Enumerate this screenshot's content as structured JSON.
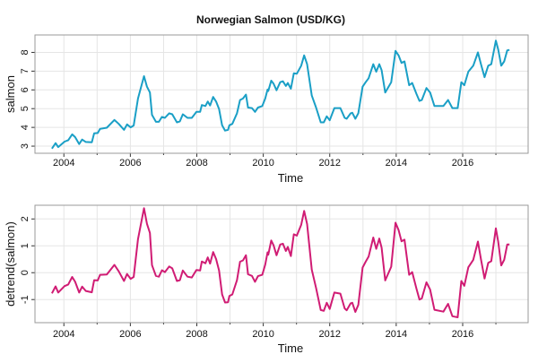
{
  "chart_data": [
    {
      "type": "line",
      "title": "Norwegian Salmon (USD/KG)",
      "xlabel": "Time",
      "ylabel": "salmon",
      "xlim": [
        2003.13,
        2017.97
      ],
      "ylim": [
        2.62,
        8.93
      ],
      "xticks": [
        2004,
        2006,
        2008,
        2010,
        2012,
        2014,
        2016
      ],
      "xtick_labels": [
        "2004",
        "2006",
        "2008",
        "2010",
        "2012",
        "2014",
        "2016"
      ],
      "yticks": [
        3,
        4,
        5,
        6,
        7,
        8
      ],
      "ytick_labels": [
        "3",
        "4",
        "5",
        "6",
        "7",
        "8"
      ],
      "grid": true,
      "color": "#1a9fc6",
      "x": [
        2003.64,
        2003.75,
        2003.83,
        2004.02,
        2004.13,
        2004.25,
        2004.34,
        2004.46,
        2004.55,
        2004.66,
        2004.84,
        2004.91,
        2005.02,
        2005.09,
        2005.29,
        2005.52,
        2005.65,
        2005.81,
        2005.9,
        2006.01,
        2006.1,
        2006.23,
        2006.41,
        2006.5,
        2006.59,
        2006.65,
        2006.77,
        2006.86,
        2006.95,
        2007.04,
        2007.17,
        2007.26,
        2007.4,
        2007.49,
        2007.58,
        2007.72,
        2007.85,
        2007.99,
        2008.1,
        2008.15,
        2008.26,
        2008.33,
        2008.4,
        2008.49,
        2008.58,
        2008.67,
        2008.76,
        2008.85,
        2008.94,
        2008.98,
        2009.07,
        2009.21,
        2009.3,
        2009.39,
        2009.48,
        2009.54,
        2009.66,
        2009.75,
        2009.84,
        2009.97,
        2010.06,
        2010.13,
        2010.15,
        2010.24,
        2010.31,
        2010.4,
        2010.51,
        2010.59,
        2010.68,
        2010.74,
        2010.83,
        2010.92,
        2011.01,
        2011.14,
        2011.23,
        2011.32,
        2011.46,
        2011.59,
        2011.73,
        2011.82,
        2011.91,
        2012.0,
        2012.14,
        2012.32,
        2012.45,
        2012.51,
        2012.63,
        2012.68,
        2012.77,
        2012.86,
        2012.99,
        2013.08,
        2013.17,
        2013.31,
        2013.4,
        2013.49,
        2013.56,
        2013.67,
        2013.85,
        2013.98,
        2014.07,
        2014.16,
        2014.25,
        2014.39,
        2014.48,
        2014.61,
        2014.7,
        2014.77,
        2014.91,
        2015.02,
        2015.15,
        2015.42,
        2015.56,
        2015.69,
        2015.85,
        2015.96,
        2016.05,
        2016.17,
        2016.32,
        2016.46,
        2016.55,
        2016.66,
        2016.77,
        2016.86,
        2017.0,
        2017.07,
        2017.16,
        2017.25,
        2017.34,
        2017.41
      ],
      "y": [
        2.87,
        3.16,
        2.95,
        3.24,
        3.32,
        3.63,
        3.48,
        3.11,
        3.35,
        3.22,
        3.21,
        3.68,
        3.7,
        3.92,
        3.98,
        4.4,
        4.19,
        3.87,
        4.16,
        4.0,
        4.1,
        5.54,
        6.73,
        6.17,
        5.86,
        4.67,
        4.3,
        4.3,
        4.56,
        4.51,
        4.75,
        4.7,
        4.27,
        4.32,
        4.7,
        4.51,
        4.51,
        4.83,
        4.83,
        5.19,
        5.14,
        5.38,
        5.17,
        5.62,
        5.38,
        4.98,
        4.11,
        3.83,
        3.87,
        4.11,
        4.19,
        4.75,
        5.46,
        5.54,
        5.75,
        5.06,
        5.03,
        4.83,
        5.06,
        5.14,
        5.54,
        6.02,
        5.94,
        6.49,
        6.33,
        5.98,
        6.41,
        6.46,
        6.21,
        6.37,
        6.06,
        6.89,
        6.86,
        7.29,
        7.84,
        7.37,
        5.7,
        5.06,
        4.27,
        4.27,
        4.59,
        4.38,
        5.03,
        5.03,
        4.51,
        4.46,
        4.75,
        4.78,
        4.46,
        4.75,
        6.17,
        6.41,
        6.62,
        7.37,
        6.97,
        7.37,
        7.05,
        5.86,
        6.41,
        8.08,
        7.84,
        7.44,
        7.52,
        6.25,
        6.37,
        5.78,
        5.41,
        5.46,
        6.1,
        5.86,
        5.14,
        5.14,
        5.46,
        5.03,
        5.03,
        6.41,
        6.25,
        6.97,
        7.29,
        8.0,
        7.37,
        6.68,
        7.29,
        7.37,
        8.63,
        8.16,
        7.29,
        7.52,
        8.11,
        8.13
      ]
    },
    {
      "type": "line",
      "title": "",
      "xlabel": "Time",
      "ylabel": "detrend(salmon)",
      "xlim": [
        2003.13,
        2017.97
      ],
      "ylim": [
        -1.86,
        2.51
      ],
      "xticks": [
        2004,
        2006,
        2008,
        2010,
        2012,
        2014,
        2016
      ],
      "xtick_labels": [
        "2004",
        "2006",
        "2008",
        "2010",
        "2012",
        "2014",
        "2016"
      ],
      "yticks": [
        -1,
        0,
        1,
        2
      ],
      "ytick_labels": [
        "-1",
        "0",
        "1",
        "2"
      ],
      "grid": true,
      "color": "#d01c74",
      "x": [
        2003.64,
        2003.75,
        2003.83,
        2004.02,
        2004.13,
        2004.25,
        2004.34,
        2004.46,
        2004.55,
        2004.66,
        2004.84,
        2004.91,
        2005.02,
        2005.09,
        2005.29,
        2005.52,
        2005.65,
        2005.81,
        2005.9,
        2006.01,
        2006.1,
        2006.23,
        2006.41,
        2006.5,
        2006.59,
        2006.65,
        2006.77,
        2006.86,
        2006.95,
        2007.04,
        2007.17,
        2007.26,
        2007.4,
        2007.49,
        2007.58,
        2007.72,
        2007.85,
        2007.99,
        2008.1,
        2008.15,
        2008.26,
        2008.33,
        2008.4,
        2008.49,
        2008.58,
        2008.67,
        2008.76,
        2008.85,
        2008.94,
        2008.98,
        2009.07,
        2009.21,
        2009.3,
        2009.39,
        2009.48,
        2009.54,
        2009.66,
        2009.75,
        2009.84,
        2009.97,
        2010.06,
        2010.13,
        2010.15,
        2010.24,
        2010.31,
        2010.4,
        2010.51,
        2010.59,
        2010.68,
        2010.74,
        2010.83,
        2010.92,
        2011.01,
        2011.14,
        2011.23,
        2011.32,
        2011.46,
        2011.59,
        2011.73,
        2011.82,
        2011.91,
        2012.0,
        2012.14,
        2012.32,
        2012.45,
        2012.51,
        2012.63,
        2012.68,
        2012.77,
        2012.86,
        2012.99,
        2013.08,
        2013.17,
        2013.31,
        2013.4,
        2013.49,
        2013.56,
        2013.67,
        2013.85,
        2013.98,
        2014.07,
        2014.16,
        2014.25,
        2014.39,
        2014.48,
        2014.61,
        2014.7,
        2014.77,
        2014.91,
        2015.02,
        2015.15,
        2015.42,
        2015.56,
        2015.69,
        2015.85,
        2015.96,
        2016.05,
        2016.17,
        2016.32,
        2016.46,
        2016.55,
        2016.66,
        2016.77,
        2016.86,
        2017.0,
        2017.07,
        2017.16,
        2017.25,
        2017.34,
        2017.41
      ],
      "y": [
        -0.77,
        -0.51,
        -0.74,
        -0.5,
        -0.44,
        -0.16,
        -0.34,
        -0.74,
        -0.52,
        -0.68,
        -0.73,
        -0.28,
        -0.29,
        -0.08,
        -0.07,
        0.29,
        0.05,
        -0.31,
        -0.05,
        -0.23,
        -0.16,
        1.25,
        2.4,
        1.82,
        1.48,
        0.28,
        -0.12,
        -0.15,
        0.09,
        0.02,
        0.23,
        0.16,
        -0.31,
        -0.28,
        0.08,
        -0.15,
        -0.18,
        0.1,
        0.08,
        0.42,
        0.35,
        0.57,
        0.34,
        0.77,
        0.51,
        0.08,
        -0.81,
        -1.11,
        -1.1,
        -0.87,
        -0.81,
        -0.28,
        0.41,
        0.46,
        0.65,
        -0.06,
        -0.12,
        -0.34,
        -0.13,
        -0.08,
        0.3,
        0.76,
        0.67,
        1.2,
        1.02,
        0.65,
        1.05,
        1.08,
        0.81,
        0.96,
        0.62,
        1.43,
        1.38,
        1.78,
        2.3,
        1.81,
        0.11,
        -0.57,
        -1.39,
        -1.42,
        -1.12,
        -1.35,
        -0.74,
        -0.78,
        -1.33,
        -1.4,
        -1.14,
        -1.12,
        -1.46,
        -1.2,
        0.19,
        0.41,
        0.6,
        1.31,
        0.89,
        1.27,
        0.93,
        -0.29,
        0.22,
        1.86,
        1.59,
        1.17,
        1.23,
        -0.08,
        0.02,
        -0.6,
        -1.0,
        -0.96,
        -0.36,
        -0.63,
        -1.38,
        -1.45,
        -1.16,
        -1.62,
        -1.66,
        -0.31,
        -0.49,
        0.2,
        0.48,
        1.16,
        0.5,
        -0.22,
        0.37,
        0.43,
        1.65,
        1.16,
        0.27,
        0.48,
        1.05,
        1.05
      ]
    }
  ]
}
